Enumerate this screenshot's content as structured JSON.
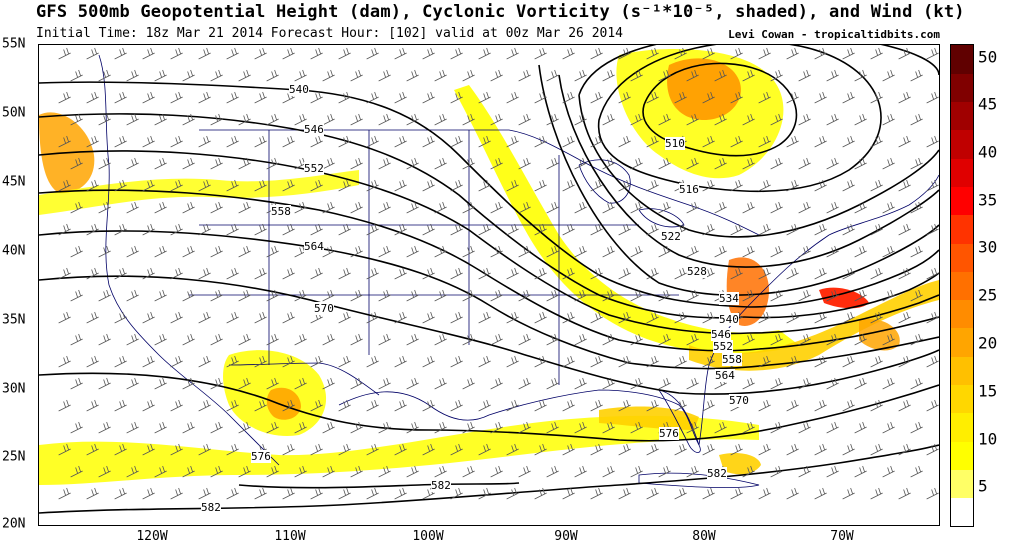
{
  "header": {
    "title": "GFS 500mb Geopotential Height (dam), Cyclonic Vorticity (s⁻¹*10⁻⁵, shaded), and Wind (kt)",
    "subtitle": "Initial Time: 18z Mar 21 2014 Forecast Hour: [102] valid at 00z Mar 26 2014",
    "credit": "Levi Cowan - tropicaltidbits.com"
  },
  "axes": {
    "lat_labels": [
      "55N",
      "50N",
      "45N",
      "40N",
      "35N",
      "30N",
      "25N",
      "20N"
    ],
    "lon_labels": [
      "120W",
      "110W",
      "100W",
      "90W",
      "80W",
      "70W"
    ]
  },
  "contours": {
    "labels": [
      "540",
      "546",
      "552",
      "558",
      "564",
      "570",
      "576",
      "582",
      "582",
      "510",
      "516",
      "522",
      "528",
      "534",
      "540",
      "546",
      "552",
      "558",
      "564",
      "570",
      "576",
      "582"
    ]
  },
  "colorbar": {
    "labels": [
      "50",
      "45",
      "40",
      "35",
      "30",
      "25",
      "20",
      "15",
      "10",
      "5"
    ],
    "colors": [
      "#ffffff",
      "#ffff66",
      "#ffff00",
      "#ffee00",
      "#ffd700",
      "#ffc000",
      "#ffa500",
      "#ff8c00",
      "#ff7000",
      "#ff5500",
      "#ff3300",
      "#ff0000",
      "#e00000",
      "#c00000",
      "#a00000",
      "#800000",
      "#600000"
    ]
  },
  "colors": {
    "contour": "#000000",
    "border": "#000066",
    "barb": "#555555",
    "shade_light": "#ffff00",
    "shade_mid": "#ffb000",
    "shade_dark": "#ff3300"
  }
}
